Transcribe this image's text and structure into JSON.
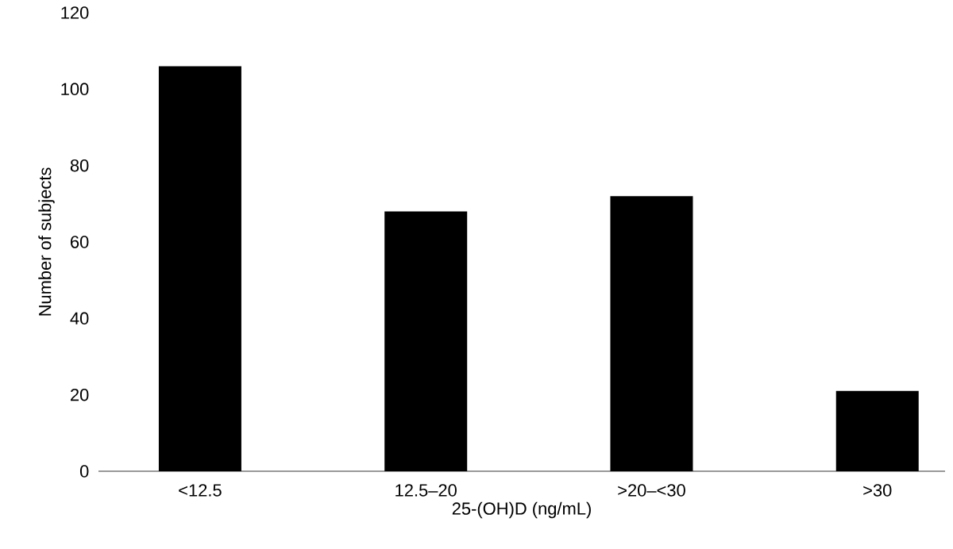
{
  "chart_data": {
    "type": "bar",
    "xlabel": "25-(OH)D (ng/mL)",
    "ylabel": "Number of subjects",
    "categories": [
      "<12.5",
      "12.5–20",
      ">20–<30",
      ">30"
    ],
    "values": [
      106,
      68,
      72,
      21
    ],
    "color": "#000000",
    "ylim": [
      0,
      120
    ],
    "yticks": [
      0,
      20,
      40,
      60,
      80,
      100,
      120
    ],
    "grid": false
  }
}
